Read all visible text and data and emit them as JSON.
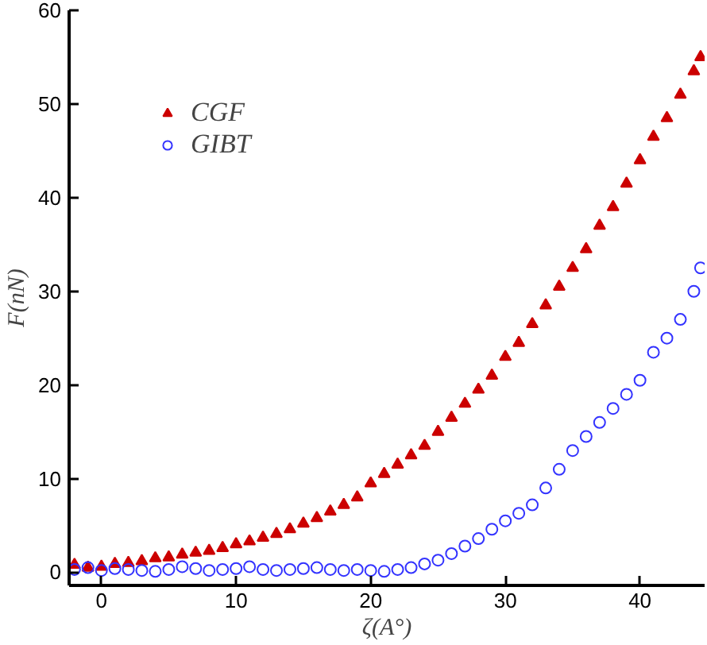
{
  "chart_data": {
    "type": "scatter",
    "xlabel": "ζ(A°)",
    "ylabel": "F(nN)",
    "x": [
      -2,
      -1,
      0,
      1,
      2,
      3,
      4,
      5,
      6,
      7,
      8,
      9,
      10,
      11,
      12,
      13,
      14,
      15,
      16,
      17,
      18,
      19,
      20,
      21,
      22,
      23,
      24,
      25,
      26,
      27,
      28,
      29,
      30,
      31,
      32,
      33,
      34,
      35,
      36,
      37,
      38,
      39,
      40,
      41,
      42,
      43,
      44,
      44.5
    ],
    "series": [
      {
        "name": "CGF",
        "color": "#cc0000",
        "marker": "triangle",
        "values": [
          0.8,
          0.5,
          0.6,
          0.9,
          1.0,
          1.2,
          1.5,
          1.6,
          1.9,
          2.1,
          2.3,
          2.6,
          3.0,
          3.3,
          3.7,
          4.1,
          4.6,
          5.2,
          5.8,
          6.5,
          7.2,
          8.0,
          9.5,
          10.5,
          11.5,
          12.5,
          13.5,
          15,
          16.5,
          18,
          19.5,
          21,
          23,
          24.5,
          26.5,
          28.5,
          30.5,
          32.5,
          34.5,
          37,
          39,
          41.5,
          44,
          46.5,
          48.5,
          51,
          53.5,
          55
        ]
      },
      {
        "name": "GIBT",
        "color": "#3333ff",
        "marker": "circle",
        "values": [
          0.3,
          0.5,
          0.2,
          0.4,
          0.3,
          0.2,
          0.1,
          0.3,
          0.6,
          0.4,
          0.2,
          0.3,
          0.4,
          0.6,
          0.3,
          0.2,
          0.3,
          0.4,
          0.5,
          0.3,
          0.2,
          0.3,
          0.2,
          0.1,
          0.3,
          0.5,
          0.9,
          1.3,
          2.0,
          2.8,
          3.6,
          4.6,
          5.5,
          6.3,
          7.2,
          9.0,
          11.0,
          13.0,
          14.5,
          16.0,
          17.5,
          19.0,
          20.5,
          23.5,
          25,
          27,
          30,
          32.5
        ]
      }
    ],
    "xlim": [
      -2.4,
      44.8
    ],
    "ylim": [
      -1.4,
      60
    ],
    "xticks": [
      0,
      10,
      20,
      30,
      40
    ],
    "yticks": [
      0,
      10,
      20,
      30,
      40,
      50,
      60
    ],
    "grid": false,
    "legend": "top left"
  }
}
